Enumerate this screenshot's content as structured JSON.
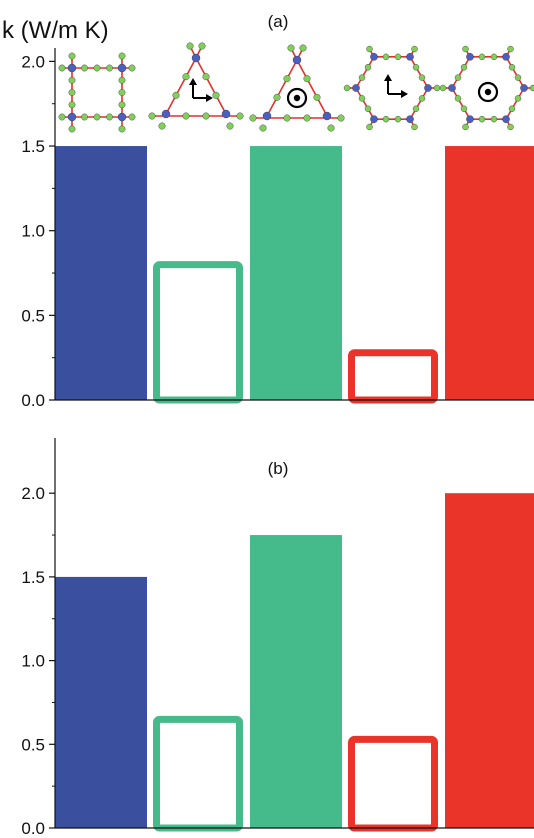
{
  "colors": {
    "blue": "#3a4f9e",
    "green": "#45bb8b",
    "red": "#ea3329",
    "atom_blue": "#4a5fc0",
    "atom_green": "#7fcf5a",
    "bond_red": "#e4312b"
  },
  "chart_data": [
    {
      "type": "bar",
      "panel": "(a)",
      "ylabel": "k (W/m K)",
      "ylim": [
        0,
        2.1
      ],
      "yticks": [
        "0.0",
        "0.5",
        "1.0",
        "1.5",
        "2.0"
      ],
      "ytick_values": [
        0,
        0.5,
        1.0,
        1.5,
        2.0
      ],
      "bars": [
        {
          "value": 1.5,
          "color": "blue",
          "style": "filled"
        },
        {
          "value": 0.82,
          "color": "green",
          "style": "hollow"
        },
        {
          "value": 1.5,
          "color": "green",
          "style": "filled"
        },
        {
          "value": 0.3,
          "color": "red",
          "style": "hollow"
        },
        {
          "value": 1.5,
          "color": "red",
          "style": "filled"
        }
      ],
      "structures": [
        {
          "lattice": "square",
          "icon": "none"
        },
        {
          "lattice": "triangle",
          "icon": "in-plane-arrows"
        },
        {
          "lattice": "triangle",
          "icon": "out-of-plane-dot"
        },
        {
          "lattice": "hexagon",
          "icon": "in-plane-arrows"
        },
        {
          "lattice": "hexagon",
          "icon": "out-of-plane-dot"
        }
      ]
    },
    {
      "type": "bar",
      "panel": "(b)",
      "ylim": [
        0,
        2.25
      ],
      "yticks": [
        "0.0",
        "0.5",
        "1.0",
        "1.5",
        "2.0"
      ],
      "ytick_values": [
        0,
        0.5,
        1.0,
        1.5,
        2.0
      ],
      "bars": [
        {
          "value": 1.5,
          "color": "blue",
          "style": "filled"
        },
        {
          "value": 0.67,
          "color": "green",
          "style": "hollow"
        },
        {
          "value": 1.75,
          "color": "green",
          "style": "filled"
        },
        {
          "value": 0.55,
          "color": "red",
          "style": "hollow"
        },
        {
          "value": 2.0,
          "color": "red",
          "style": "filled"
        }
      ]
    }
  ]
}
